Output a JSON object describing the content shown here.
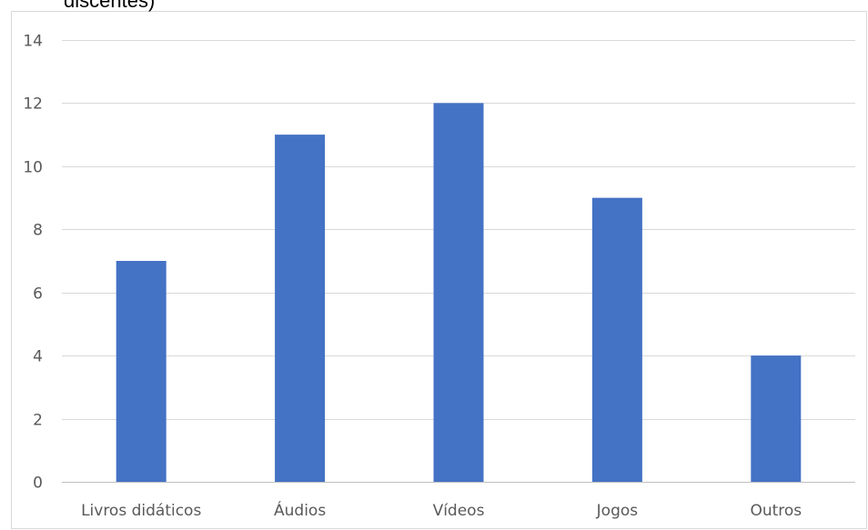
{
  "chart_data": {
    "type": "bar",
    "title": "discentes)",
    "categories": [
      "Livros didáticos",
      "Áudios",
      "Vídeos",
      "Jogos",
      "Outros"
    ],
    "values": [
      7,
      11,
      12,
      9,
      4
    ],
    "ylim": [
      0,
      14
    ],
    "yticks": [
      "0",
      "2",
      "4",
      "6",
      "8",
      "10",
      "12",
      "14"
    ],
    "ytick_values": [
      0,
      2,
      4,
      6,
      8,
      10,
      12,
      14
    ],
    "grid": true,
    "legend": "none",
    "bar_color": "#4472c4",
    "grid_color": "#d9d9d9",
    "axis_color": "#bfbfbf",
    "frame_color": "#d9d9d9",
    "text_color": "#595959"
  }
}
